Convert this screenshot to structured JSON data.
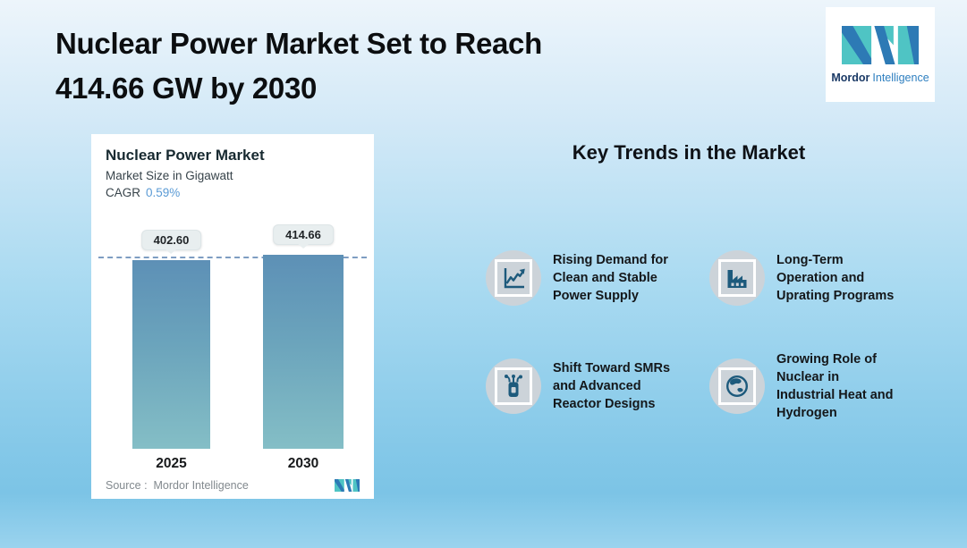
{
  "page": {
    "title": "Nuclear Power Market Set to Reach\n414.66 GW by 2030"
  },
  "logo": {
    "brand_bold": "Mordor",
    "brand_light": "Intelligence"
  },
  "chart_card": {
    "title": "Nuclear Power Market",
    "subtitle": "Market Size in Gigawatt",
    "cagr_label": "CAGR",
    "cagr_value": "0.59%",
    "source_label": "Source :",
    "source_value": "Mordor Intelligence"
  },
  "chart_data": {
    "type": "bar",
    "categories": [
      "2025",
      "2030"
    ],
    "values": [
      402.6,
      414.66
    ],
    "title": "Nuclear Power Market",
    "ylabel": "Market Size in Gigawatt",
    "unit": "GW",
    "cagr": "0.59%",
    "ylim": [
      0,
      414.66
    ],
    "grid": false,
    "legend": false,
    "dashed_guideline_at": 402.6,
    "bar_color_top": "#5d90b6",
    "bar_color_bottom": "#84bec6",
    "source": "Mordor Intelligence"
  },
  "trends": {
    "heading": "Key Trends in the Market",
    "items": [
      {
        "icon": "line-chart-icon",
        "label": "Rising Demand for\nClean and Stable\nPower Supply"
      },
      {
        "icon": "factory-icon",
        "label": "Long-Term\nOperation and\nUprating Programs"
      },
      {
        "icon": "smr-reactor-icon",
        "label": "Shift Toward SMRs\nand Advanced\nReactor Designs"
      },
      {
        "icon": "globe-icon",
        "label": "Growing Role of\nNuclear in\nIndustrial Heat and\nHydrogen"
      }
    ]
  },
  "colors": {
    "background_top": "#edf5fb",
    "background_bottom": "#9ad3ee",
    "accent_blue": "#5b9bd5",
    "icon_ink": "#1d5a7c",
    "icon_circle": "#ccd3d9",
    "logo_teal": "#4fc4c4",
    "logo_blue": "#2d7ab5"
  }
}
